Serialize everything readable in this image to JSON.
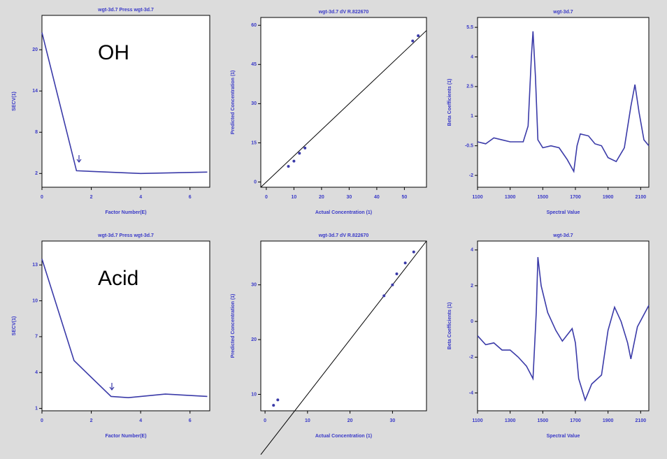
{
  "chart_data": [
    {
      "type": "line",
      "title": "wgt-3d.7 Press wgt-3d.7",
      "xlabel": "Factor Number(E)",
      "ylabel": "SECV(1)",
      "annotation": "OH",
      "color": "#3a3aa8",
      "x": [
        0,
        1.4,
        4,
        6.7
      ],
      "values": [
        22.5,
        2.4,
        2.0,
        2.2
      ],
      "xlim": [
        0,
        6.8
      ],
      "ylim": [
        0,
        25
      ],
      "xticks": [
        0,
        2,
        4,
        6
      ],
      "yticks": [
        2,
        8,
        14,
        20
      ]
    },
    {
      "type": "scatter",
      "title": "wgt-3d.7 dV R.822670",
      "xlabel": "Actual Concentration (1)",
      "ylabel": "Predicted Concentration (1)",
      "color": "#3a3aa8",
      "reference_line": true,
      "x": [
        8,
        10,
        12,
        14,
        53,
        55
      ],
      "values": [
        6,
        8,
        11,
        13,
        54,
        56
      ],
      "xlim": [
        -2,
        58
      ],
      "ylim": [
        -2,
        63
      ],
      "xticks": [
        0,
        10,
        20,
        30,
        40,
        50
      ],
      "yticks": [
        0,
        15,
        30,
        45,
        60
      ]
    },
    {
      "type": "line",
      "title": "wgt-3d.7",
      "xlabel": "Spectral Value",
      "ylabel": "Beta Coefficients (1)",
      "color": "#3a3aa8",
      "x": [
        1100,
        1150,
        1200,
        1250,
        1300,
        1380,
        1410,
        1430,
        1440,
        1455,
        1470,
        1500,
        1550,
        1600,
        1650,
        1690,
        1710,
        1730,
        1780,
        1820,
        1860,
        1900,
        1950,
        2000,
        2040,
        2065,
        2090,
        2120,
        2150
      ],
      "values": [
        -0.3,
        -0.4,
        -0.1,
        -0.2,
        -0.3,
        -0.3,
        0.5,
        4,
        5.3,
        3,
        -0.2,
        -0.6,
        -0.5,
        -0.6,
        -1.2,
        -1.8,
        -0.5,
        0.1,
        0,
        -0.4,
        -0.5,
        -1.1,
        -1.3,
        -0.6,
        1.5,
        2.6,
        1.2,
        -0.2,
        -0.5
      ],
      "xlim": [
        1100,
        2150
      ],
      "ylim": [
        -2.6,
        6
      ],
      "xticks": [
        1100,
        1300,
        1500,
        1700,
        1900,
        2100
      ],
      "yticks": [
        -2,
        -0.5,
        1,
        2.5,
        4,
        5.5
      ]
    },
    {
      "type": "line",
      "title": "wgt-3d.7 Press wgt-3d.7",
      "xlabel": "Factor Number(E)",
      "ylabel": "SECV(1)",
      "annotation": "Acid",
      "color": "#3a3aa8",
      "x": [
        0,
        1.3,
        2.8,
        3.5,
        5,
        6.7
      ],
      "values": [
        13.5,
        5,
        2.0,
        1.9,
        2.2,
        2.0
      ],
      "xlim": [
        0,
        6.8
      ],
      "ylim": [
        0.8,
        15
      ],
      "xticks": [
        0,
        2,
        4,
        6
      ],
      "yticks": [
        1,
        4,
        7,
        10,
        13
      ]
    },
    {
      "type": "scatter",
      "title": "wgt-3d.7 dV R.822670",
      "xlabel": "Actual Concentration (1)",
      "ylabel": "Predicted Concentration (1)",
      "color": "#3a3aa8",
      "reference_line": true,
      "x": [
        2,
        3,
        28,
        30,
        31,
        33,
        35
      ],
      "values": [
        8,
        9,
        28,
        30,
        32,
        34,
        36
      ],
      "xlim": [
        -1,
        38
      ],
      "ylim": [
        7,
        38
      ],
      "xticks": [
        0,
        10,
        20,
        30
      ],
      "yticks": [
        10,
        20,
        30
      ]
    },
    {
      "type": "line",
      "title": "wgt-3d.7",
      "xlabel": "Spectral Value",
      "ylabel": "Beta Coefficients (1)",
      "color": "#3a3aa8",
      "x": [
        1100,
        1150,
        1200,
        1250,
        1300,
        1350,
        1400,
        1440,
        1460,
        1470,
        1490,
        1530,
        1580,
        1620,
        1680,
        1700,
        1720,
        1760,
        1800,
        1860,
        1900,
        1940,
        1980,
        2020,
        2040,
        2080,
        2150
      ],
      "values": [
        -0.8,
        -1.3,
        -1.2,
        -1.6,
        -1.6,
        -2.0,
        -2.5,
        -3.2,
        0.5,
        3.6,
        2.0,
        0.5,
        -0.5,
        -1.1,
        -0.4,
        -1.2,
        -3.2,
        -4.4,
        -3.5,
        -3.0,
        -0.5,
        0.8,
        0,
        -1.2,
        -2.1,
        -0.3,
        0.9
      ],
      "xlim": [
        1100,
        2150
      ],
      "ylim": [
        -5,
        4.5
      ],
      "xticks": [
        1100,
        1300,
        1500,
        1700,
        1900,
        2100
      ],
      "yticks": [
        -4,
        -2,
        0,
        2,
        4
      ]
    }
  ]
}
